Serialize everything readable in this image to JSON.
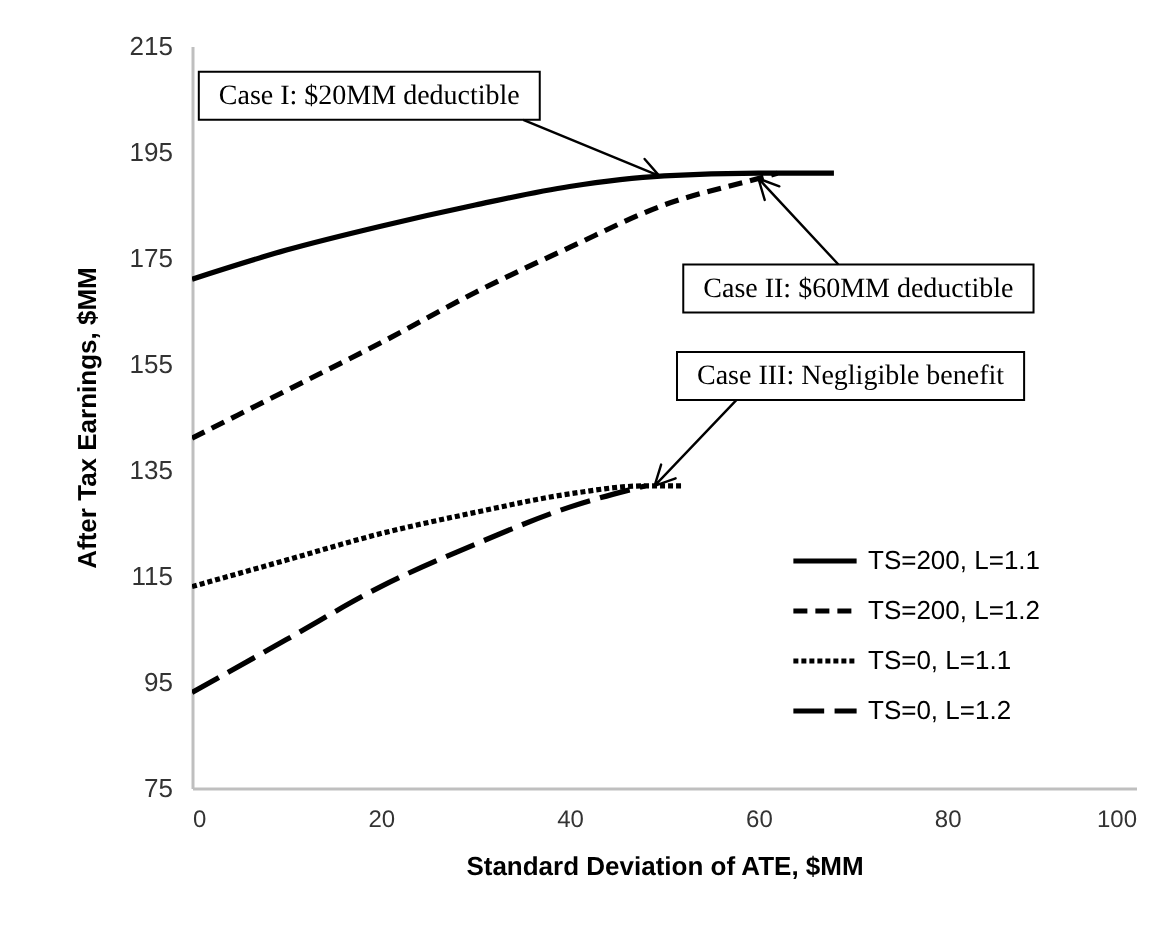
{
  "chart_data": {
    "type": "line",
    "xlabel": "Standard Deviation of ATE, $MM",
    "ylabel": "After Tax Earnings, $MM",
    "xlim": [
      0,
      100
    ],
    "xticks": [
      0,
      20,
      40,
      60,
      80,
      100
    ],
    "ylim": [
      75,
      215
    ],
    "yticks": [
      75,
      95,
      115,
      135,
      155,
      175,
      195,
      215
    ],
    "grid": false,
    "legend": "right",
    "marker": "none",
    "series": [
      {
        "name": "TS=200, L=1.1",
        "color": "#000000",
        "line_style": "solid",
        "x": [
          0,
          10,
          20,
          30,
          40,
          50,
          60,
          68
        ],
        "values": [
          171,
          176.5,
          181,
          185,
          188.5,
          190.5,
          191,
          191
        ]
      },
      {
        "name": "TS=200, L=1.2",
        "color": "#000000",
        "line_style": "dashed",
        "x": [
          0,
          10,
          20,
          30,
          40,
          50,
          60,
          62
        ],
        "values": [
          141,
          150,
          159,
          168.5,
          177,
          185,
          190,
          191
        ]
      },
      {
        "name": "TS=0, L=1.1",
        "color": "#000000",
        "line_style": "dotted",
        "x": [
          0,
          10,
          20,
          30,
          40,
          48,
          52
        ],
        "values": [
          113,
          118,
          123,
          127,
          130.5,
          132,
          132
        ]
      },
      {
        "name": "TS=0, L=1.2",
        "color": "#000000",
        "line_style": "dashed",
        "x": [
          0,
          10,
          20,
          30,
          40,
          48
        ],
        "values": [
          93,
          103,
          113,
          121,
          128,
          132
        ]
      }
    ],
    "annotations": [
      {
        "text": "Case I: $20MM deductible",
        "x": 49.5,
        "y": 190.5
      },
      {
        "text": "Case II: $60MM deductible",
        "x": 60,
        "y": 190
      },
      {
        "text": "Case III: Negligible benefit",
        "x": 49,
        "y": 132
      }
    ]
  }
}
